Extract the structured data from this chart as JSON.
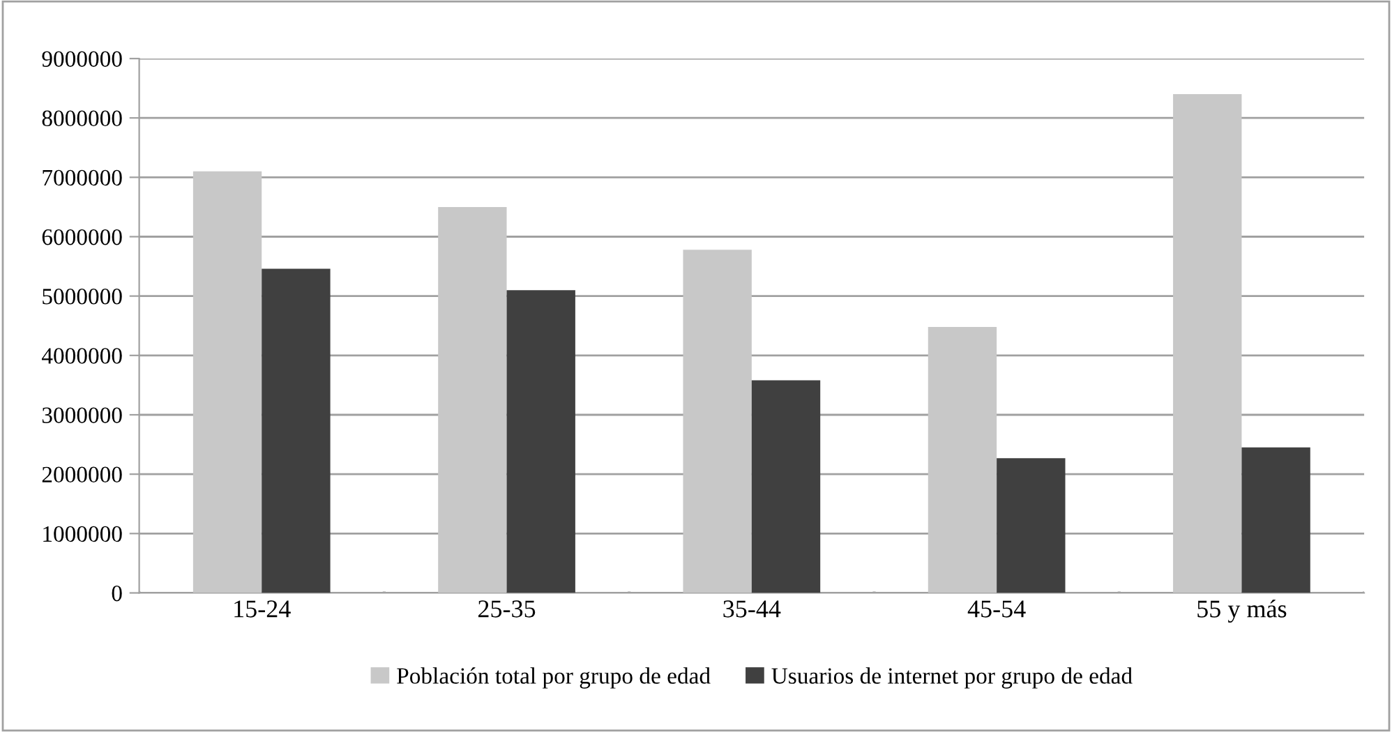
{
  "chart_data": {
    "type": "bar",
    "categories": [
      "15-24",
      "25-35",
      "35-44",
      "45-54",
      "55 y más"
    ],
    "series": [
      {
        "name": "Población total por grupo de edad",
        "color": "#c8c8c8",
        "values": [
          7100000,
          6500000,
          5780000,
          4480000,
          8400000
        ]
      },
      {
        "name": "Usuarios de internet por grupo de edad",
        "color": "#404040",
        "values": [
          5460000,
          5100000,
          3580000,
          2270000,
          2450000
        ]
      }
    ],
    "ylim": [
      0,
      9000000
    ],
    "yticks": [
      0,
      1000000,
      2000000,
      3000000,
      4000000,
      5000000,
      6000000,
      7000000,
      8000000,
      9000000
    ],
    "grid": "y",
    "legend": "bottom"
  }
}
